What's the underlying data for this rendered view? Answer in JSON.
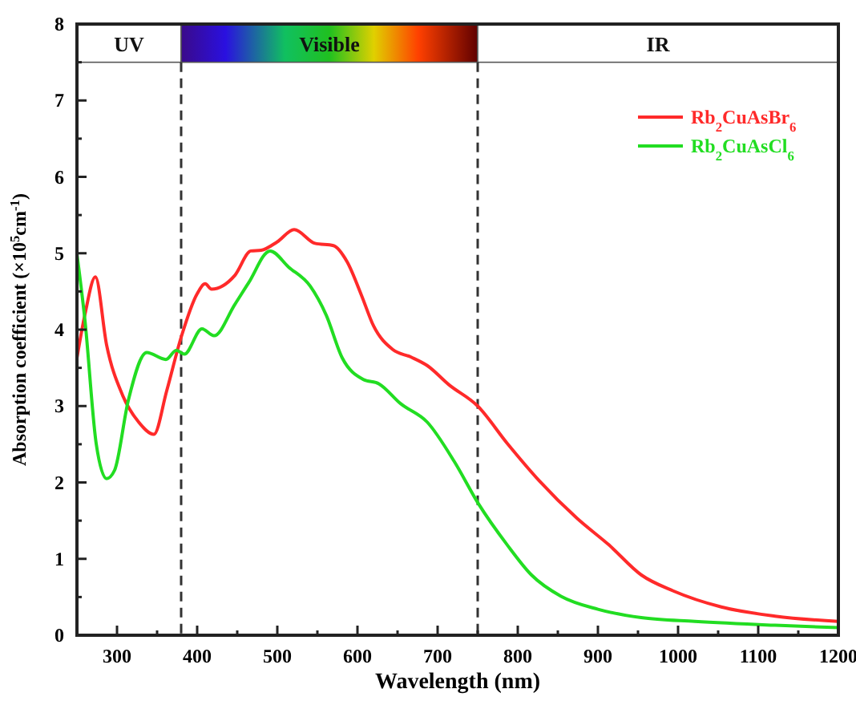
{
  "chart_data": {
    "type": "line",
    "xlabel": "Wavelength (nm)",
    "ylabel": "Absorption coefficient (×10$^{5}$cm$^{-1}$)",
    "xlim": [
      250,
      1200
    ],
    "ylim": [
      0,
      8
    ],
    "xticks": [
      300,
      {
        "value": 350,
        "label": null
      },
      400,
      {
        "value": 450,
        "label": null
      },
      500,
      {
        "value": 550,
        "label": null
      },
      600,
      {
        "value": 650,
        "label": null
      },
      700,
      {
        "value": 750,
        "label": null
      },
      800,
      {
        "value": 850,
        "label": null
      },
      900,
      {
        "value": 950,
        "label": null
      },
      1000,
      {
        "value": 1050,
        "label": null
      },
      1100,
      {
        "value": 1150,
        "label": null
      },
      1200
    ],
    "yticks": [
      0,
      {
        "value": 0.5,
        "label": null
      },
      1,
      {
        "value": 1.5,
        "label": null
      },
      2,
      {
        "value": 2.5,
        "label": null
      },
      3,
      {
        "value": 3.5,
        "label": null
      },
      4,
      {
        "value": 4.5,
        "label": null
      },
      5,
      {
        "value": 5.5,
        "label": null
      },
      6,
      {
        "value": 6.5,
        "label": null
      },
      7,
      {
        "value": 7.5,
        "label": null
      },
      8
    ],
    "legend": "top right",
    "line_style": "solid",
    "ref_lines": [
      {
        "axis": "x",
        "value": 380,
        "line_style": "dashed",
        "color": "#333333"
      },
      {
        "axis": "x",
        "value": 750,
        "line_style": "dashed",
        "color": "#333333"
      }
    ],
    "bands": [
      {
        "axis": "x",
        "from": 250,
        "to": 380,
        "label": "UV",
        "color": "#ffffff"
      },
      {
        "axis": "x",
        "from": 380,
        "to": 750,
        "label": "Visible"
      },
      {
        "axis": "x",
        "from": 750,
        "to": 1200,
        "label": "IR",
        "color": "#ffffff"
      }
    ],
    "series": [
      {
        "name": "Rb$_{2}$CuAsBr$_{6}$",
        "color": "#ff2a2a",
        "x": [
          250,
          260,
          273,
          287,
          307,
          327,
          346,
          362,
          380,
          400,
          410,
          418,
          447,
          467,
          480,
          500,
          521,
          547,
          570,
          587,
          605,
          620,
          644,
          667,
          687,
          714,
          750,
          787,
          827,
          874,
          914,
          954,
          994,
          1054,
          1121,
          1200
        ],
        "values": [
          3.63,
          4.2,
          4.69,
          3.8,
          3.14,
          2.79,
          2.63,
          3.2,
          3.9,
          4.47,
          4.6,
          4.53,
          4.71,
          5.03,
          5.04,
          5.15,
          5.31,
          5.13,
          5.1,
          4.89,
          4.45,
          4.05,
          3.74,
          3.64,
          3.53,
          3.28,
          3.0,
          2.51,
          2.02,
          1.53,
          1.18,
          0.79,
          0.58,
          0.37,
          0.25,
          0.18
        ]
      },
      {
        "name": "Rb$_{2}$CuAsCl$_{6}$",
        "color": "#22dd22",
        "x": [
          250,
          260,
          274,
          287,
          297,
          314,
          337,
          361,
          374,
          384,
          406,
          421,
          447,
          464,
          491,
          514,
          541,
          561,
          581,
          607,
          627,
          654,
          687,
          721,
          751,
          787,
          817,
          854,
          900,
          954,
          1021,
          1121,
          1200
        ],
        "values": [
          4.99,
          4.12,
          2.51,
          2.05,
          2.16,
          3.07,
          3.7,
          3.61,
          3.73,
          3.68,
          4.01,
          3.92,
          4.33,
          4.61,
          5.03,
          4.82,
          4.57,
          4.19,
          3.63,
          3.35,
          3.29,
          3.03,
          2.79,
          2.27,
          1.72,
          1.18,
          0.79,
          0.51,
          0.34,
          0.23,
          0.18,
          0.13,
          0.1
        ]
      }
    ]
  }
}
